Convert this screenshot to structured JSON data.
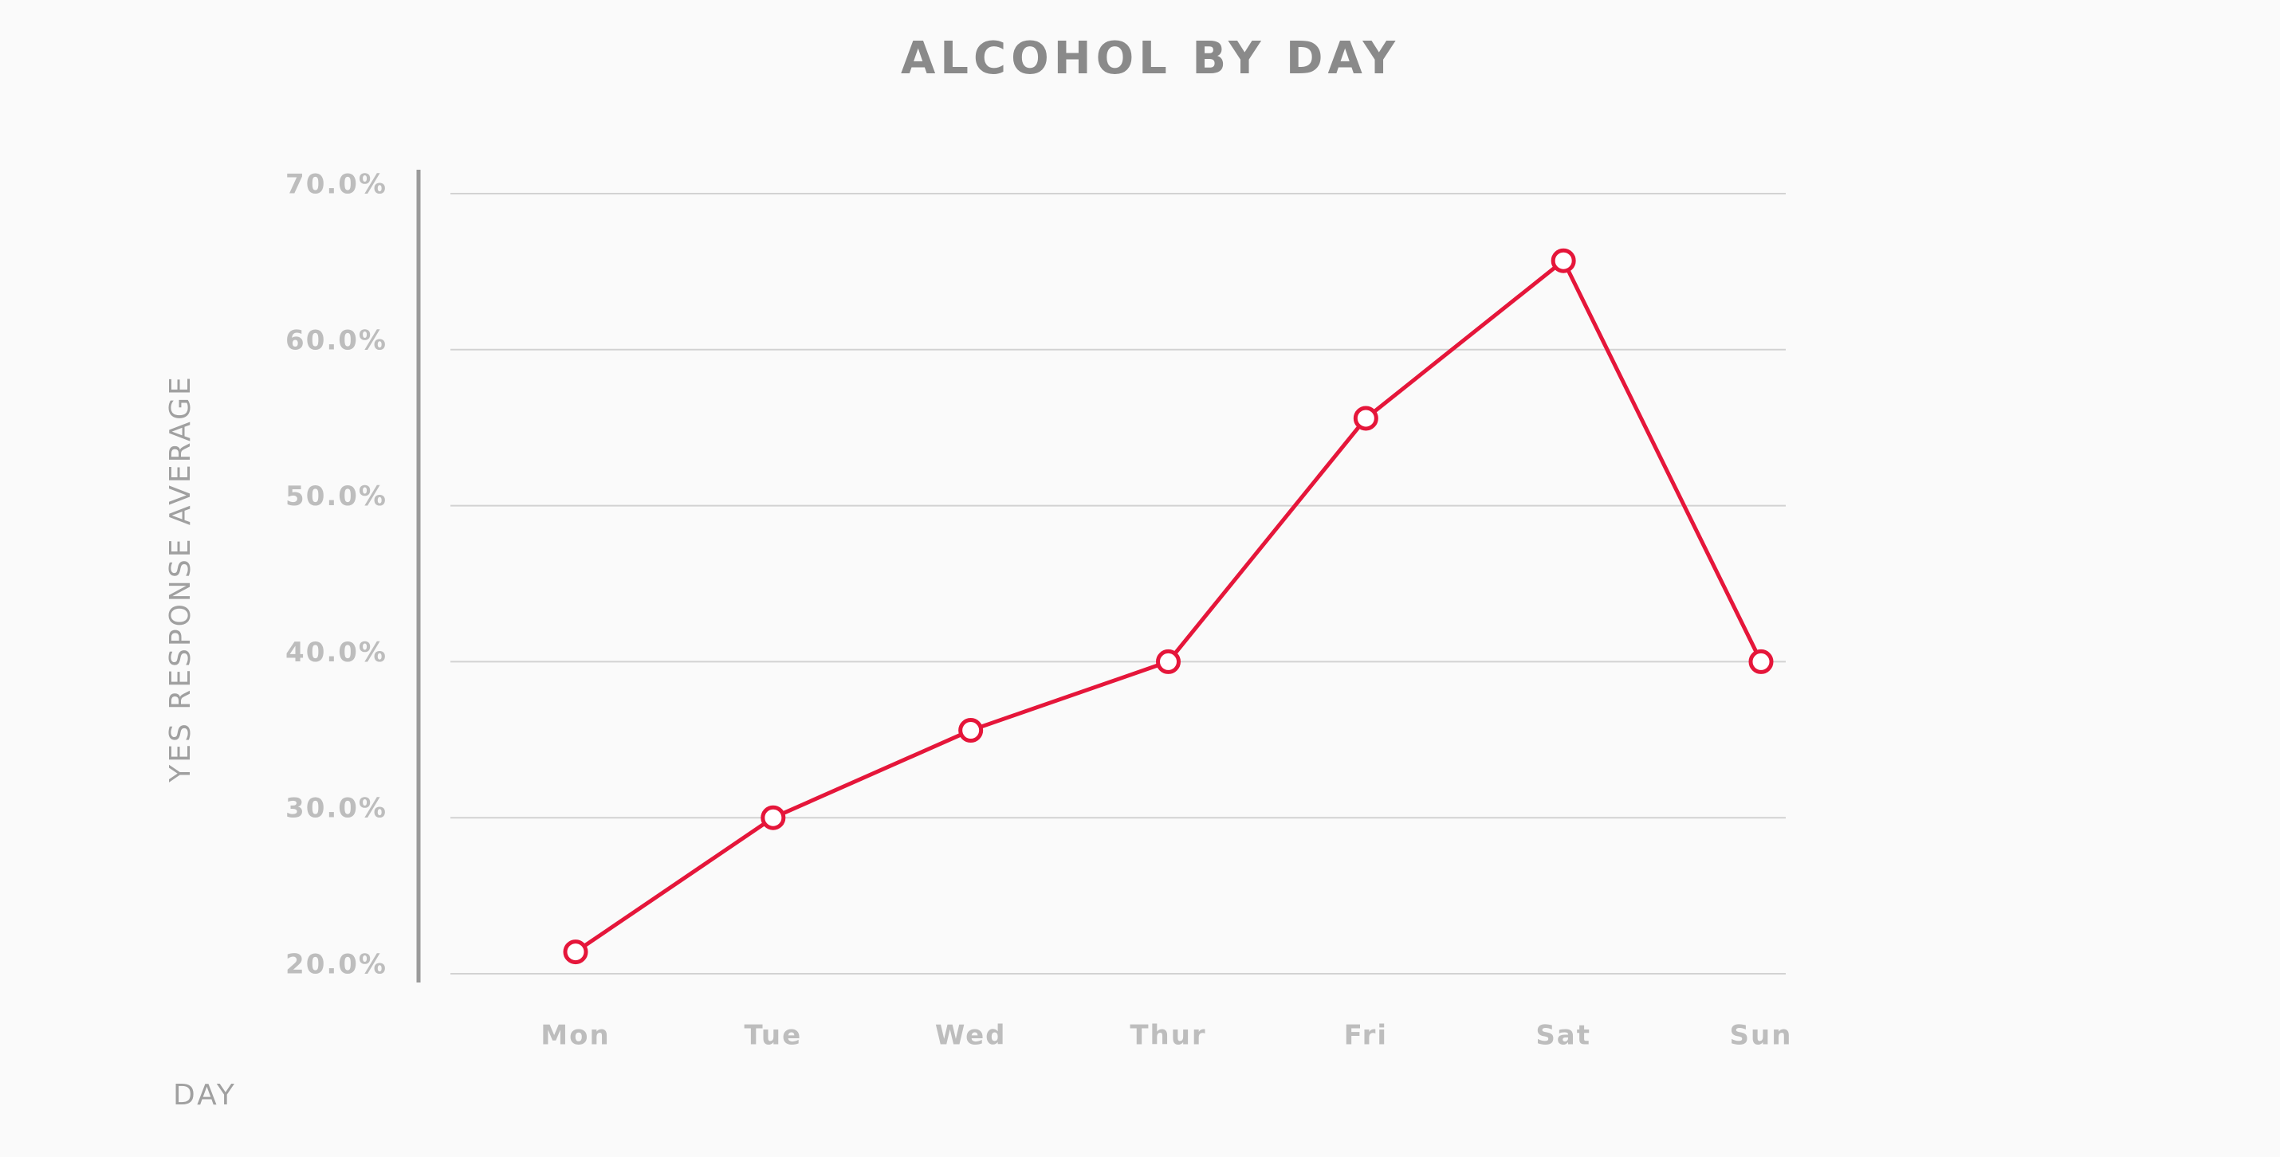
{
  "chart_data": {
    "type": "line",
    "title": "ALCOHOL BY DAY",
    "x_label": "DAY",
    "y_label": "YES RESPONSE AVERAGE",
    "categories": [
      "Mon",
      "Tue",
      "Wed",
      "Thur",
      "Fri",
      "Sat",
      "Sun"
    ],
    "series": [
      {
        "name": "Yes response average",
        "color": "#e5163a",
        "values": [
          21.4,
          30,
          35.6,
          40,
          55.6,
          65.7,
          40
        ]
      }
    ],
    "ylim": [
      20,
      70
    ],
    "yticks": [
      {
        "value": 20,
        "label": "20.0%"
      },
      {
        "value": 30,
        "label": "30.0%"
      },
      {
        "value": 40,
        "label": "40.0%"
      },
      {
        "value": 50,
        "label": "50.0%"
      },
      {
        "value": 60,
        "label": "60.0%"
      },
      {
        "value": 70,
        "label": "70.0%"
      }
    ],
    "grid": true
  }
}
